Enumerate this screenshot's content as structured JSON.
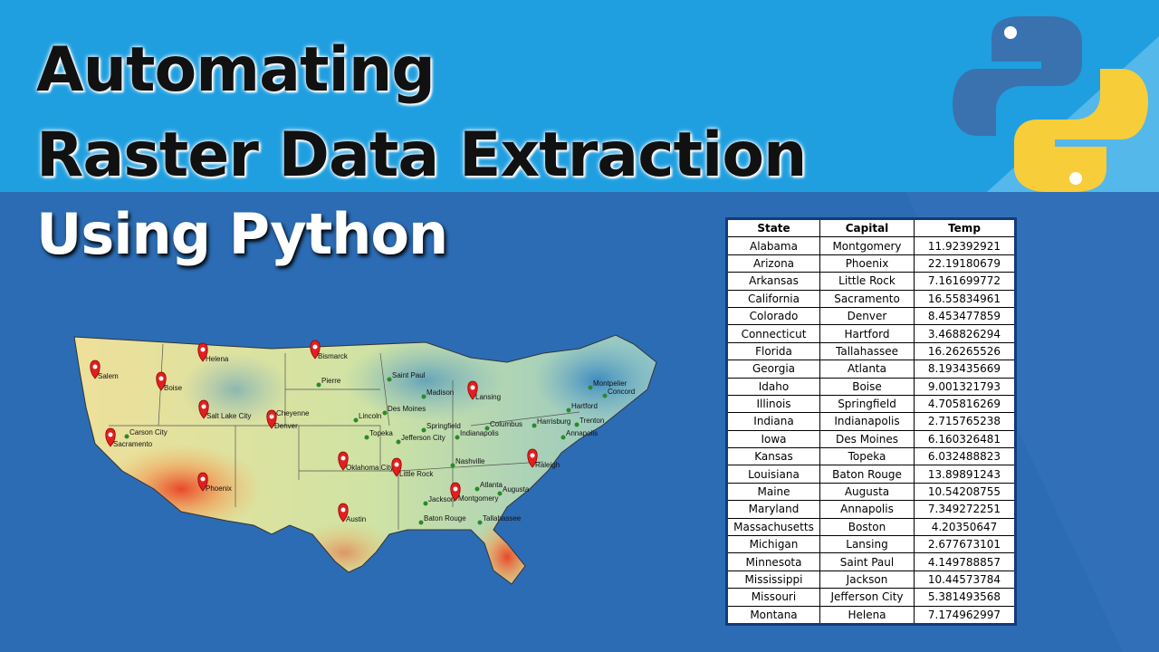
{
  "title": {
    "line1": "Automating",
    "line2": "Raster Data Extraction",
    "line3": "Using Python"
  },
  "table": {
    "columns": [
      "State",
      "Capital",
      "Temp"
    ],
    "rows": [
      [
        "Alabama",
        "Montgomery",
        11.92392921
      ],
      [
        "Arizona",
        "Phoenix",
        22.19180679
      ],
      [
        "Arkansas",
        "Little Rock",
        7.161699772
      ],
      [
        "California",
        "Sacramento",
        16.55834961
      ],
      [
        "Colorado",
        "Denver",
        8.453477859
      ],
      [
        "Connecticut",
        "Hartford",
        3.468826294
      ],
      [
        "Florida",
        "Tallahassee",
        16.26265526
      ],
      [
        "Georgia",
        "Atlanta",
        8.193435669
      ],
      [
        "Idaho",
        "Boise",
        9.001321793
      ],
      [
        "Illinois",
        "Springfield",
        4.705816269
      ],
      [
        "Indiana",
        "Indianapolis",
        2.715765238
      ],
      [
        "Iowa",
        "Des Moines",
        6.160326481
      ],
      [
        "Kansas",
        "Topeka",
        6.032488823
      ],
      [
        "Louisiana",
        "Baton Rouge",
        13.89891243
      ],
      [
        "Maine",
        "Augusta",
        10.54208755
      ],
      [
        "Maryland",
        "Annapolis",
        7.349272251
      ],
      [
        "Massachusetts",
        "Boston",
        4.20350647
      ],
      [
        "Michigan",
        "Lansing",
        2.677673101
      ],
      [
        "Minnesota",
        "Saint Paul",
        4.149788857
      ],
      [
        "Mississippi",
        "Jackson",
        10.44573784
      ],
      [
        "Missouri",
        "Jefferson City",
        5.381493568
      ],
      [
        "Montana",
        "Helena",
        7.174962997
      ]
    ]
  },
  "map": {
    "cities": [
      "Salem",
      "Boise",
      "Helena",
      "Bismarck",
      "Pierre",
      "Saint Paul",
      "Madison",
      "Lansing",
      "Montpelier",
      "Concord",
      "Hartford",
      "Carson City",
      "Sacramento",
      "Salt Lake City",
      "Cheyenne",
      "Denver",
      "Lincoln",
      "Des Moines",
      "Springfield",
      "Indianapolis",
      "Columbus",
      "Harrisburg",
      "Trenton",
      "Annapolis",
      "Topeka",
      "Jefferson City",
      "Oklahoma City",
      "Little Rock",
      "Nashville",
      "Raleigh",
      "Phoenix",
      "Jackson",
      "Montgomery",
      "Atlanta",
      "Augusta",
      "Austin",
      "Baton Rouge",
      "Tallahassee"
    ]
  }
}
